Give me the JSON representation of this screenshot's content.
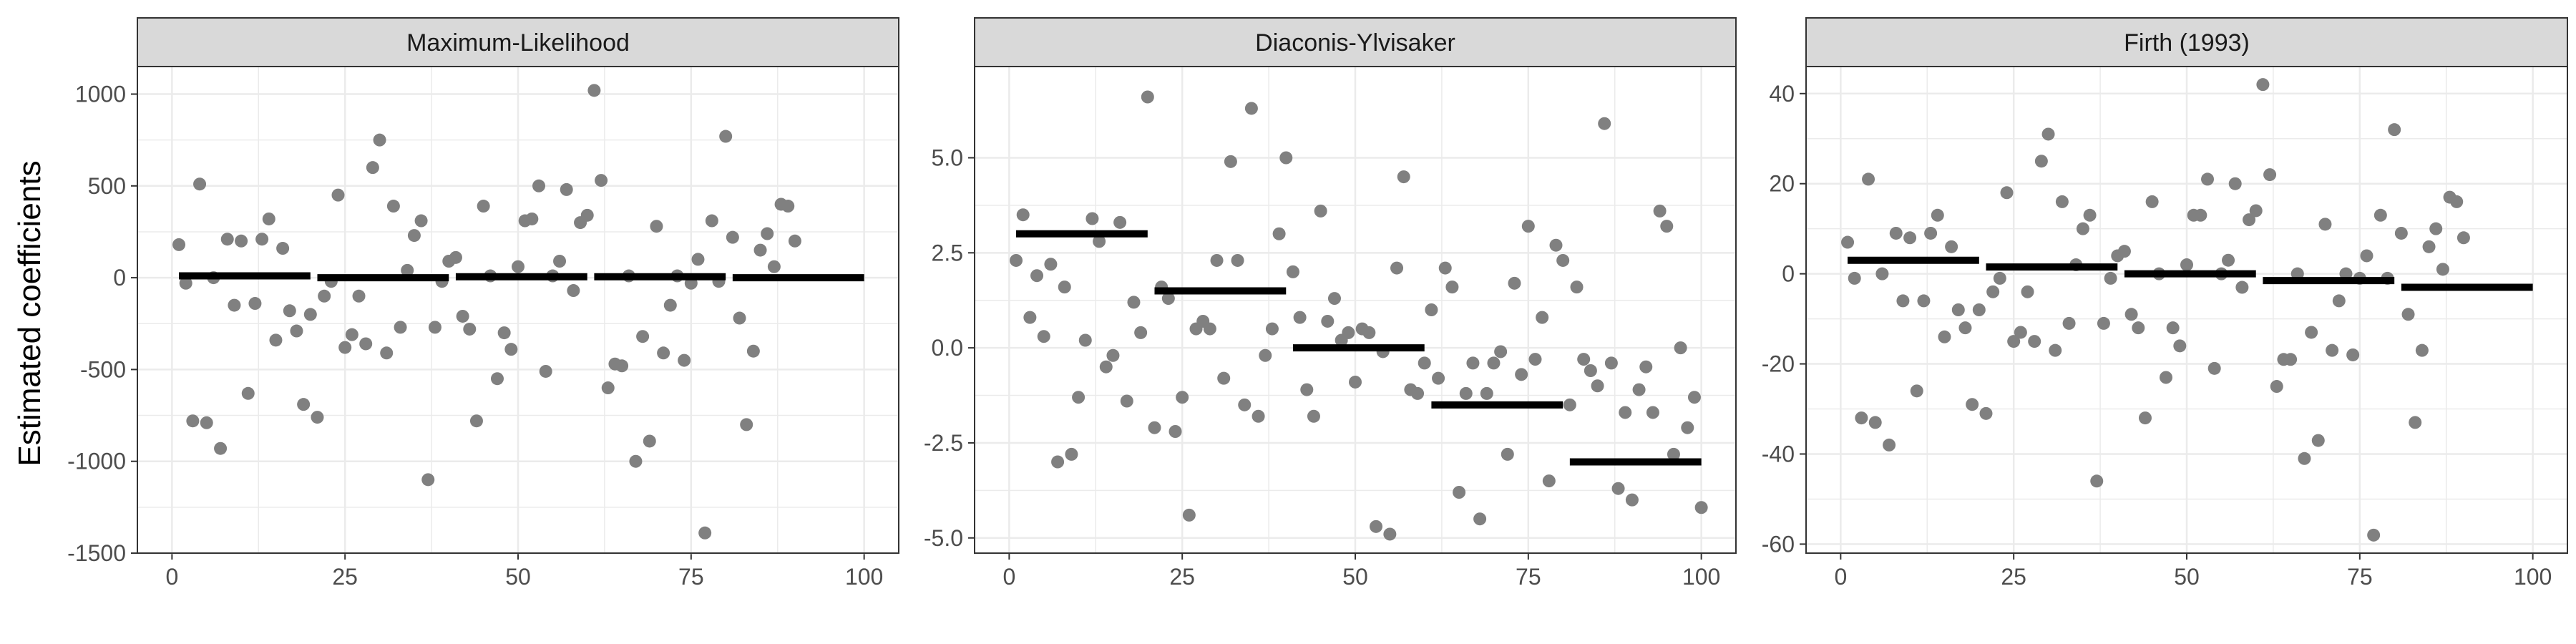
{
  "y_axis_title": "Estimated coefficients",
  "colors": {
    "point": "#808080",
    "segment": "#000000",
    "strip": "#d9d9d9",
    "grid": "#ebebeb",
    "frame": "#333333"
  },
  "chart_data": [
    {
      "type": "scatter",
      "title": "Maximum-Likelihood",
      "xlabel": "",
      "ylabel": "Estimated coefficients",
      "xlim": [
        -5,
        105
      ],
      "ylim": [
        -1500,
        1150
      ],
      "xticks": [
        0,
        25,
        50,
        75,
        100
      ],
      "yticks": [
        -1500,
        -1000,
        -500,
        0,
        500,
        1000
      ],
      "grid": true,
      "x": [
        1,
        2,
        3,
        4,
        5,
        6,
        7,
        8,
        9,
        10,
        11,
        12,
        13,
        14,
        15,
        16,
        17,
        18,
        19,
        20,
        21,
        22,
        23,
        24,
        25,
        26,
        27,
        28,
        29,
        30,
        31,
        32,
        33,
        34,
        35,
        36,
        37,
        38,
        39,
        40,
        41,
        42,
        43,
        44,
        45,
        46,
        47,
        48,
        49,
        50,
        51,
        52,
        53,
        54,
        55,
        56,
        57,
        58,
        59,
        60,
        61,
        62,
        63,
        64,
        65,
        66,
        67,
        68,
        69,
        70,
        71,
        72,
        73,
        74,
        75,
        76,
        77,
        78,
        79,
        80,
        81,
        82,
        83,
        84,
        85,
        86,
        87,
        88,
        89,
        90
      ],
      "y": [
        180,
        -30,
        -780,
        510,
        -790,
        0,
        -930,
        210,
        -150,
        200,
        -630,
        -140,
        210,
        320,
        -340,
        160,
        -180,
        -290,
        -690,
        -200,
        -760,
        -100,
        -20,
        450,
        -380,
        -310,
        -100,
        -360,
        600,
        750,
        -410,
        390,
        -270,
        40,
        230,
        310,
        -1100,
        -270,
        -20,
        90,
        110,
        -210,
        -280,
        -780,
        390,
        10,
        -550,
        -300,
        -390,
        60,
        310,
        320,
        500,
        -510,
        10,
        90,
        480,
        -70,
        300,
        340,
        1020,
        530,
        -600,
        -470,
        -480,
        10,
        -1000,
        -320,
        -890,
        280,
        -410,
        -150,
        10,
        -450,
        -30,
        100,
        -1390,
        310,
        -20,
        770,
        220,
        -220,
        -800,
        -400,
        150,
        240,
        60,
        400,
        390,
        200
      ],
      "segments": [
        {
          "x": [
            1,
            20
          ],
          "y": 10
        },
        {
          "x": [
            21,
            40
          ],
          "y": 0
        },
        {
          "x": [
            41,
            60
          ],
          "y": 5
        },
        {
          "x": [
            61,
            80
          ],
          "y": 5
        },
        {
          "x": [
            81,
            100
          ],
          "y": 0
        }
      ]
    },
    {
      "type": "scatter",
      "title": "Diaconis-Ylvisaker",
      "xlabel": "",
      "ylabel": "",
      "xlim": [
        -5,
        105
      ],
      "ylim": [
        -5.4,
        7.4
      ],
      "xticks": [
        0,
        25,
        50,
        75,
        100
      ],
      "yticks": [
        -5.0,
        -2.5,
        0.0,
        2.5,
        5.0
      ],
      "ytick_labels": [
        "-5.0",
        "-2.5",
        "0.0",
        "2.5",
        "5.0"
      ],
      "grid": true,
      "x": [
        1,
        2,
        3,
        4,
        5,
        6,
        7,
        8,
        9,
        10,
        11,
        12,
        13,
        14,
        15,
        16,
        17,
        18,
        19,
        20,
        21,
        22,
        23,
        24,
        25,
        26,
        27,
        28,
        29,
        30,
        31,
        32,
        33,
        34,
        35,
        36,
        37,
        38,
        39,
        40,
        41,
        42,
        43,
        44,
        45,
        46,
        47,
        48,
        49,
        50,
        51,
        52,
        53,
        54,
        55,
        56,
        57,
        58,
        59,
        60,
        61,
        62,
        63,
        64,
        65,
        66,
        67,
        68,
        69,
        70,
        71,
        72,
        73,
        74,
        75,
        76,
        77,
        78,
        79,
        80,
        81,
        82,
        83,
        84,
        85,
        86,
        87,
        88,
        89,
        90,
        91,
        92,
        93,
        94,
        95,
        96,
        97,
        98,
        99,
        100
      ],
      "y": [
        2.3,
        3.5,
        0.8,
        1.9,
        0.3,
        2.2,
        -3.0,
        1.6,
        -2.8,
        -1.3,
        0.2,
        3.4,
        2.8,
        -0.5,
        -0.2,
        3.3,
        -1.4,
        1.2,
        0.4,
        6.6,
        -2.1,
        1.6,
        1.3,
        -2.2,
        -1.3,
        -4.4,
        0.5,
        0.7,
        0.5,
        2.3,
        -0.8,
        4.9,
        2.3,
        -1.5,
        6.3,
        -1.8,
        -0.2,
        0.5,
        3.0,
        5.0,
        2.0,
        0.8,
        -1.1,
        -1.8,
        3.6,
        0.7,
        1.3,
        0.2,
        0.4,
        -0.9,
        0.5,
        0.4,
        -4.7,
        -0.1,
        -4.9,
        2.1,
        4.5,
        -1.1,
        -1.2,
        -0.4,
        1.0,
        -0.8,
        2.1,
        1.6,
        -3.8,
        -1.2,
        -0.4,
        -4.5,
        -1.2,
        -0.4,
        -0.1,
        -2.8,
        1.7,
        -0.7,
        3.2,
        -0.3,
        0.8,
        -3.5,
        2.7,
        2.3,
        -1.5,
        1.6,
        -0.3,
        -0.6,
        -1.0,
        5.9,
        -0.4,
        -3.7,
        -1.7,
        -4.0,
        -1.1,
        -0.5,
        -1.7,
        3.6,
        3.2,
        -2.8,
        0.0,
        -2.1,
        -1.3,
        -4.2
      ],
      "segments": [
        {
          "x": [
            1,
            20
          ],
          "y": 3.0
        },
        {
          "x": [
            21,
            40
          ],
          "y": 1.5
        },
        {
          "x": [
            41,
            60
          ],
          "y": 0.0
        },
        {
          "x": [
            61,
            80
          ],
          "y": -1.5
        },
        {
          "x": [
            81,
            100
          ],
          "y": -3.0
        }
      ]
    },
    {
      "type": "scatter",
      "title": "Firth (1993)",
      "xlabel": "",
      "ylabel": "",
      "xlim": [
        -5,
        105
      ],
      "ylim": [
        -62,
        46
      ],
      "xticks": [
        0,
        25,
        50,
        75,
        100
      ],
      "yticks": [
        -60,
        -40,
        -20,
        0,
        20,
        40
      ],
      "grid": true,
      "x": [
        1,
        2,
        3,
        4,
        5,
        6,
        7,
        8,
        9,
        10,
        11,
        12,
        13,
        14,
        15,
        16,
        17,
        18,
        19,
        20,
        21,
        22,
        23,
        24,
        25,
        26,
        27,
        28,
        29,
        30,
        31,
        32,
        33,
        34,
        35,
        36,
        37,
        38,
        39,
        40,
        41,
        42,
        43,
        44,
        45,
        46,
        47,
        48,
        49,
        50,
        51,
        52,
        53,
        54,
        55,
        56,
        57,
        58,
        59,
        60,
        61,
        62,
        63,
        64,
        65,
        66,
        67,
        68,
        69,
        70,
        71,
        72,
        73,
        74,
        75,
        76,
        77,
        78,
        79,
        80,
        81,
        82,
        83,
        84,
        85,
        86,
        87,
        88,
        89,
        90
      ],
      "y": [
        7,
        -1,
        -32,
        21,
        -33,
        0,
        -38,
        9,
        -6,
        8,
        -26,
        -6,
        9,
        13,
        -14,
        6,
        -8,
        -12,
        -29,
        -8,
        -31,
        -4,
        -1,
        18,
        -15,
        -13,
        -4,
        -15,
        25,
        31,
        -17,
        16,
        -11,
        2,
        10,
        13,
        -46,
        -11,
        -1,
        4,
        5,
        -9,
        -12,
        -32,
        16,
        0,
        -23,
        -12,
        -16,
        2,
        13,
        13,
        21,
        -21,
        0,
        3,
        20,
        -3,
        12,
        14,
        42,
        22,
        -25,
        -19,
        -19,
        0,
        -41,
        -13,
        -37,
        11,
        -17,
        -6,
        0,
        -18,
        -1,
        4,
        -58,
        13,
        -1,
        32,
        9,
        -9,
        -33,
        -17,
        6,
        10,
        1,
        17,
        16,
        8
      ],
      "segments": [
        {
          "x": [
            1,
            20
          ],
          "y": 3
        },
        {
          "x": [
            21,
            40
          ],
          "y": 1.5
        },
        {
          "x": [
            41,
            60
          ],
          "y": 0
        },
        {
          "x": [
            61,
            80
          ],
          "y": -1.5
        },
        {
          "x": [
            81,
            100
          ],
          "y": -3
        }
      ]
    }
  ]
}
